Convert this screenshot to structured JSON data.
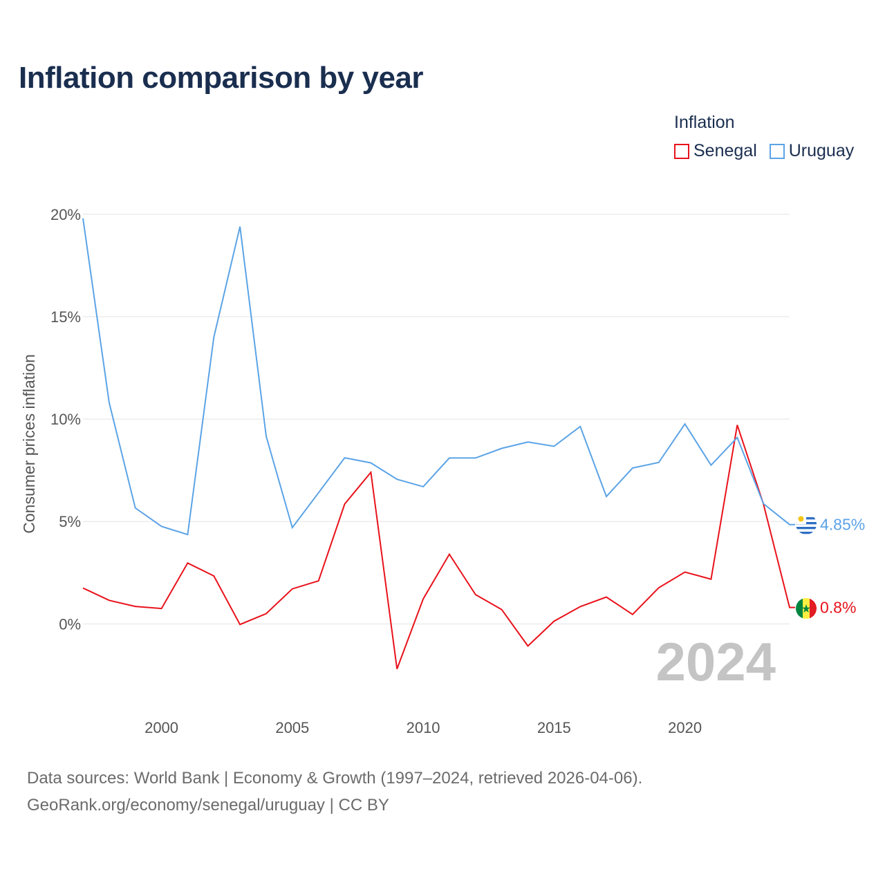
{
  "title": "Inflation comparison by year",
  "legend": {
    "title": "Inflation",
    "items": [
      {
        "name": "Senegal",
        "color": "#e8111a"
      },
      {
        "name": "Uruguay",
        "color": "#5ba3e6"
      }
    ]
  },
  "footer": {
    "line1": "Data sources: World Bank | Economy & Growth (1997–2024, retrieved 2026-04-06).",
    "line2": "GeoRank.org/economy/senegal/uruguay | CC BY"
  },
  "chart_data": {
    "type": "line",
    "title": "Inflation comparison by year",
    "xlabel": "",
    "ylabel": "Consumer prices inflation",
    "x": [
      1997,
      1998,
      1999,
      2000,
      2001,
      2002,
      2003,
      2004,
      2005,
      2006,
      2007,
      2008,
      2009,
      2010,
      2011,
      2012,
      2013,
      2014,
      2015,
      2016,
      2017,
      2018,
      2019,
      2020,
      2021,
      2022,
      2023,
      2024
    ],
    "xlim": [
      1997,
      2024
    ],
    "ylim": [
      -3.5,
      20.3
    ],
    "x_ticks": [
      2000,
      2005,
      2010,
      2015,
      2020
    ],
    "x_tick_labels": [
      "2000",
      "2005",
      "2010",
      "2015",
      "2020"
    ],
    "y_ticks": [
      0,
      5,
      10,
      15,
      20
    ],
    "y_tick_labels": [
      "0%",
      "5%",
      "10%",
      "15%",
      "20%"
    ],
    "grid": true,
    "legend_position": "top-right",
    "current_year": "2024",
    "series": [
      {
        "name": "Senegal",
        "color": "#e8111a",
        "flag": "senegal-flag",
        "end_label": "0.8%",
        "values": [
          1.75,
          1.15,
          0.85,
          0.75,
          2.97,
          2.34,
          -0.03,
          0.5,
          1.71,
          2.1,
          5.85,
          7.4,
          -2.2,
          1.22,
          3.4,
          1.43,
          0.7,
          -1.08,
          0.13,
          0.84,
          1.31,
          0.46,
          1.76,
          2.53,
          2.18,
          9.71,
          5.86,
          0.8
        ]
      },
      {
        "name": "Uruguay",
        "color": "#5ba3e6",
        "flag": "uruguay-flag",
        "end_label": "4.85%",
        "values": [
          19.8,
          10.8,
          5.66,
          4.76,
          4.36,
          14.0,
          19.4,
          9.16,
          4.7,
          6.4,
          8.11,
          7.86,
          7.06,
          6.7,
          8.1,
          8.1,
          8.57,
          8.88,
          8.67,
          9.64,
          6.22,
          7.61,
          7.88,
          9.76,
          7.75,
          9.1,
          5.87,
          4.85
        ]
      }
    ]
  }
}
